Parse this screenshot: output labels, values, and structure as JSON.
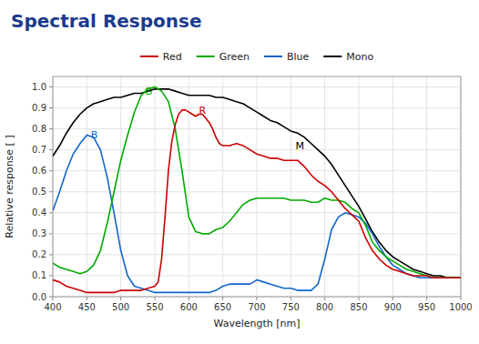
{
  "chart_data": {
    "type": "line",
    "title": "Spectral Response",
    "x_label": "Wavelength [nm]",
    "y_label": "Relative response [ ]",
    "xlim": [
      400,
      1000
    ],
    "ylim": [
      0.0,
      1.05
    ],
    "xticks": [
      400,
      450,
      500,
      550,
      600,
      650,
      700,
      750,
      800,
      850,
      900,
      950,
      1000
    ],
    "yticks": [
      {
        "value": 0.0,
        "label": "0.0"
      },
      0.1,
      0.2,
      0.3,
      0.4,
      0.5,
      0.6,
      0.7,
      0.8,
      0.9,
      {
        "value": 1.0,
        "label": "1.0"
      }
    ],
    "grid": true,
    "legend": "top",
    "annotations": [
      {
        "text": "G",
        "x": 535,
        "y": 0.955,
        "color": "#00aa00"
      },
      {
        "text": "R",
        "x": 615,
        "y": 0.865,
        "color": "#cc0000"
      },
      {
        "text": "B",
        "x": 456,
        "y": 0.745,
        "color": "#1166cc"
      },
      {
        "text": "M",
        "x": 757,
        "y": 0.695,
        "color": "#000000"
      }
    ],
    "series": [
      {
        "name": "Red",
        "color": "#cc0000",
        "x": [
          400,
          410,
          420,
          430,
          440,
          450,
          460,
          470,
          480,
          490,
          500,
          510,
          520,
          530,
          540,
          550,
          555,
          560,
          565,
          570,
          575,
          580,
          585,
          590,
          595,
          600,
          605,
          610,
          615,
          620,
          625,
          630,
          635,
          640,
          645,
          650,
          660,
          670,
          680,
          690,
          700,
          710,
          720,
          730,
          740,
          750,
          760,
          770,
          780,
          790,
          800,
          810,
          820,
          830,
          840,
          850,
          860,
          870,
          880,
          890,
          900,
          910,
          920,
          930,
          940,
          950,
          960,
          970,
          980,
          990,
          1000
        ],
        "values": [
          0.08,
          0.07,
          0.05,
          0.04,
          0.03,
          0.02,
          0.02,
          0.02,
          0.02,
          0.02,
          0.03,
          0.03,
          0.03,
          0.03,
          0.04,
          0.05,
          0.07,
          0.18,
          0.38,
          0.6,
          0.74,
          0.82,
          0.87,
          0.89,
          0.89,
          0.88,
          0.87,
          0.86,
          0.87,
          0.87,
          0.85,
          0.83,
          0.8,
          0.76,
          0.73,
          0.72,
          0.72,
          0.73,
          0.72,
          0.7,
          0.68,
          0.67,
          0.66,
          0.66,
          0.65,
          0.65,
          0.65,
          0.62,
          0.58,
          0.55,
          0.53,
          0.5,
          0.46,
          0.42,
          0.39,
          0.36,
          0.28,
          0.22,
          0.18,
          0.15,
          0.13,
          0.12,
          0.11,
          0.1,
          0.1,
          0.1,
          0.09,
          0.09,
          0.09,
          0.09,
          0.09
        ]
      },
      {
        "name": "Green",
        "color": "#00aa00",
        "x": [
          400,
          410,
          420,
          430,
          440,
          450,
          460,
          470,
          480,
          490,
          500,
          510,
          520,
          530,
          540,
          550,
          560,
          570,
          580,
          590,
          600,
          610,
          620,
          630,
          640,
          650,
          660,
          670,
          680,
          690,
          700,
          710,
          720,
          730,
          740,
          750,
          760,
          770,
          780,
          790,
          800,
          810,
          820,
          830,
          840,
          850,
          860,
          870,
          880,
          890,
          900,
          910,
          920,
          930,
          940,
          950,
          960,
          970,
          980,
          990,
          1000
        ],
        "values": [
          0.16,
          0.14,
          0.13,
          0.12,
          0.11,
          0.12,
          0.15,
          0.22,
          0.35,
          0.5,
          0.65,
          0.77,
          0.88,
          0.96,
          0.99,
          1.0,
          0.98,
          0.93,
          0.8,
          0.6,
          0.38,
          0.31,
          0.3,
          0.3,
          0.32,
          0.33,
          0.36,
          0.4,
          0.44,
          0.46,
          0.47,
          0.47,
          0.47,
          0.47,
          0.47,
          0.46,
          0.46,
          0.46,
          0.45,
          0.45,
          0.47,
          0.46,
          0.46,
          0.45,
          0.42,
          0.4,
          0.34,
          0.26,
          0.22,
          0.19,
          0.17,
          0.15,
          0.13,
          0.12,
          0.11,
          0.1,
          0.09,
          0.09,
          0.09,
          0.09,
          0.09
        ]
      },
      {
        "name": "Blue",
        "color": "#1166cc",
        "x": [
          400,
          410,
          420,
          430,
          440,
          450,
          460,
          470,
          480,
          490,
          500,
          510,
          520,
          530,
          540,
          550,
          560,
          570,
          580,
          590,
          600,
          610,
          620,
          630,
          640,
          650,
          660,
          670,
          680,
          690,
          700,
          710,
          720,
          730,
          740,
          750,
          760,
          770,
          780,
          790,
          800,
          810,
          820,
          830,
          840,
          850,
          860,
          870,
          880,
          890,
          900,
          910,
          920,
          930,
          940,
          950,
          960,
          970,
          980,
          990,
          1000
        ],
        "values": [
          0.41,
          0.5,
          0.6,
          0.68,
          0.73,
          0.77,
          0.76,
          0.7,
          0.57,
          0.4,
          0.22,
          0.1,
          0.05,
          0.04,
          0.03,
          0.02,
          0.02,
          0.02,
          0.02,
          0.02,
          0.02,
          0.02,
          0.02,
          0.02,
          0.03,
          0.05,
          0.06,
          0.06,
          0.06,
          0.06,
          0.08,
          0.07,
          0.06,
          0.05,
          0.04,
          0.04,
          0.03,
          0.03,
          0.03,
          0.06,
          0.18,
          0.32,
          0.38,
          0.4,
          0.39,
          0.38,
          0.35,
          0.3,
          0.24,
          0.19,
          0.15,
          0.13,
          0.11,
          0.1,
          0.09,
          0.09,
          0.09,
          0.09,
          0.09,
          0.09,
          0.09
        ]
      },
      {
        "name": "Mono",
        "color": "#000000",
        "x": [
          400,
          410,
          420,
          430,
          440,
          450,
          460,
          470,
          480,
          490,
          500,
          510,
          520,
          530,
          540,
          550,
          560,
          570,
          580,
          590,
          600,
          610,
          620,
          630,
          640,
          650,
          660,
          670,
          680,
          690,
          700,
          710,
          720,
          730,
          740,
          750,
          760,
          770,
          780,
          790,
          800,
          810,
          820,
          830,
          840,
          850,
          860,
          870,
          880,
          890,
          900,
          910,
          920,
          930,
          940,
          950,
          960,
          970,
          980,
          990,
          1000
        ],
        "values": [
          0.67,
          0.72,
          0.78,
          0.83,
          0.87,
          0.9,
          0.92,
          0.93,
          0.94,
          0.95,
          0.95,
          0.96,
          0.97,
          0.97,
          0.98,
          0.99,
          0.99,
          0.99,
          0.98,
          0.97,
          0.96,
          0.96,
          0.96,
          0.96,
          0.95,
          0.95,
          0.94,
          0.93,
          0.92,
          0.9,
          0.88,
          0.86,
          0.84,
          0.83,
          0.81,
          0.79,
          0.78,
          0.76,
          0.73,
          0.7,
          0.67,
          0.63,
          0.58,
          0.53,
          0.48,
          0.43,
          0.37,
          0.31,
          0.26,
          0.22,
          0.19,
          0.17,
          0.15,
          0.13,
          0.12,
          0.11,
          0.1,
          0.1,
          0.09,
          0.09,
          0.09
        ]
      }
    ]
  }
}
